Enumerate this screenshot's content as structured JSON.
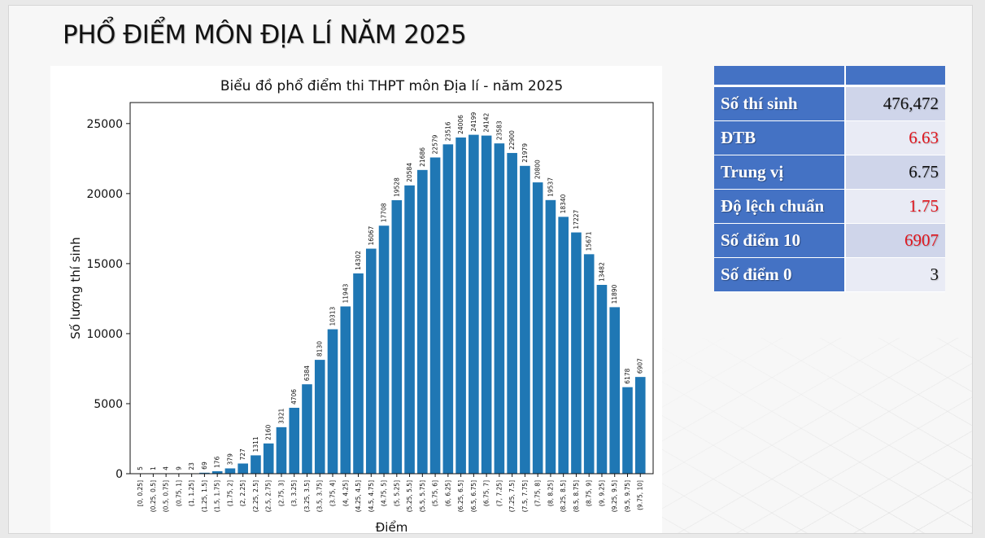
{
  "slide": {
    "title": "PHỔ ĐIỂM MÔN ĐỊA LÍ NĂM 2025"
  },
  "stats": {
    "header": [
      "",
      ""
    ],
    "rows": [
      {
        "label": "Số thí sinh",
        "value": "476,472",
        "highlight": false
      },
      {
        "label": "ĐTB",
        "value": "6.63",
        "highlight": true
      },
      {
        "label": "Trung vị",
        "value": "6.75",
        "highlight": false
      },
      {
        "label": "Độ lệch chuẩn",
        "value": "1.75",
        "highlight": true
      },
      {
        "label": "Số điểm 10",
        "value": "6907",
        "highlight": true
      },
      {
        "label": "Số điểm 0",
        "value": "3",
        "highlight": false
      }
    ],
    "colors": {
      "header": "#4472c4",
      "row_odd": "#cfd5ea",
      "row_even": "#e9ebf5",
      "highlight_text": "#e0161e"
    }
  },
  "chart_data": {
    "type": "bar",
    "title": "Biểu đồ phổ điểm thi THPT môn Địa lí - năm 2025",
    "xlabel": "Điểm",
    "ylabel": "Số lượng thí sinh",
    "ylim": [
      0,
      26500
    ],
    "yticks": [
      0,
      5000,
      10000,
      15000,
      20000,
      25000
    ],
    "color": "#1f77b4",
    "grid": false,
    "categories": [
      "[0, 0.25]",
      "(0.25, 0.5]",
      "(0.5, 0.75]",
      "(0.75, 1]",
      "(1, 1.25]",
      "(1.25, 1.5]",
      "(1.5, 1.75]",
      "(1.75, 2]",
      "(2, 2.25]",
      "(2.25, 2.5]",
      "(2.5, 2.75]",
      "(2.75, 3]",
      "(3, 3.25]",
      "(3.25, 3.5]",
      "(3.5, 3.75]",
      "(3.75, 4]",
      "(4, 4.25]",
      "(4.25, 4.5]",
      "(4.5, 4.75]",
      "(4.75, 5]",
      "(5, 5.25]",
      "(5.25, 5.5]",
      "(5.5, 5.75]",
      "(5.75, 6]",
      "(6, 6.25]",
      "(6.25, 6.5]",
      "(6.5, 6.75]",
      "(6.75, 7]",
      "(7, 7.25]",
      "(7.25, 7.5]",
      "(7.5, 7.75]",
      "(7.75, 8]",
      "(8, 8.25]",
      "(8.25, 8.5]",
      "(8.5, 8.75]",
      "(8.75, 9]",
      "(9, 9.25]",
      "(9.25, 9.5]",
      "(9.5, 9.75]",
      "(9.75, 10]"
    ],
    "values": [
      5,
      1,
      4,
      9,
      23,
      69,
      176,
      379,
      727,
      1311,
      2160,
      3321,
      4706,
      6384,
      8130,
      10313,
      11943,
      14302,
      16067,
      17708,
      19528,
      20584,
      21686,
      22579,
      23516,
      24006,
      24199,
      24142,
      23583,
      22900,
      21979,
      20800,
      19537,
      18340,
      17227,
      15671,
      13482,
      11890,
      6178,
      6907
    ]
  }
}
